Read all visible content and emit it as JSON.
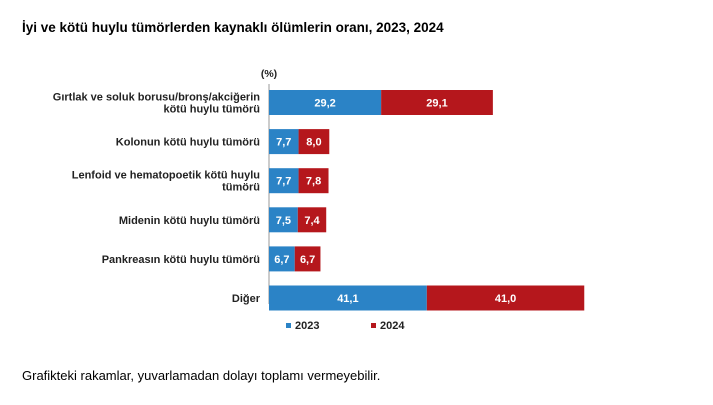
{
  "chart_data": {
    "type": "bar",
    "orientation": "horizontal",
    "stacked": true,
    "title": "İyi ve kötü huylu tümörlerden kaynaklı ölümlerin oranı, 2023, 2024",
    "unit": "(%)",
    "categories": [
      [
        "Gırtlak ve soluk borusu/bronş/akciğerin",
        "kötü huylu tümörü"
      ],
      [
        "Kolonun kötü huylu tümörü"
      ],
      [
        "Lenfoid ve hematopoetik kötü huylu",
        "tümörü"
      ],
      [
        "Midenin kötü huylu tümörü"
      ],
      [
        "Pankreasın kötü huylu tümörü"
      ],
      [
        "Diğer"
      ]
    ],
    "series": [
      {
        "name": "2023",
        "color": "#2b83c6",
        "values": [
          29.2,
          7.7,
          7.7,
          7.5,
          6.7,
          41.1
        ],
        "labels": [
          "29,2",
          "7,7",
          "7,7",
          "7,5",
          "6,7",
          "41,1"
        ]
      },
      {
        "name": "2024",
        "color": "#b5171c",
        "values": [
          29.1,
          8.0,
          7.8,
          7.4,
          6.7,
          41.0
        ],
        "labels": [
          "29,1",
          "8,0",
          "7,8",
          "7,4",
          "6,7",
          "41,0"
        ]
      }
    ],
    "legend_position": "bottom",
    "grid": false
  },
  "footnote": "Grafikteki rakamlar, yuvarlamadan dolayı toplamı vermeyebilir."
}
